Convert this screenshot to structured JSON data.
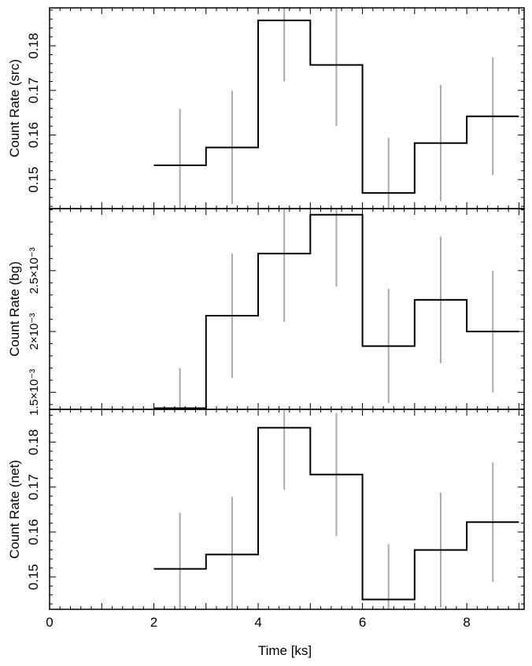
{
  "chart_data": [
    {
      "type": "line",
      "panel": "src",
      "ylabel": "Count Rate (src)",
      "xlim": [
        0,
        9.1
      ],
      "ylim": [
        0.1435,
        0.1885
      ],
      "yticks": [
        0.15,
        0.16,
        0.17,
        0.18
      ],
      "ytick_labels": [
        "0.15",
        "0.16",
        "0.17",
        "0.18"
      ],
      "bins": [
        [
          2,
          3
        ],
        [
          3,
          4
        ],
        [
          4,
          5
        ],
        [
          5,
          6
        ],
        [
          6,
          7
        ],
        [
          7,
          8
        ],
        [
          8,
          9
        ]
      ],
      "x": [
        2.5,
        3.5,
        4.5,
        5.5,
        6.5,
        7.5,
        8.5
      ],
      "values": [
        0.1532,
        0.1572,
        0.1857,
        0.1757,
        0.147,
        0.1582,
        0.1642
      ],
      "errors": [
        0.0127,
        0.0127,
        0.0137,
        0.0137,
        0.0124,
        0.013,
        0.0132
      ]
    },
    {
      "type": "line",
      "panel": "bg",
      "ylabel": "Count Rate (bg)",
      "xlim": [
        0,
        9.1
      ],
      "ylim": [
        0.00136,
        0.00301
      ],
      "yticks": [
        0.0015,
        0.002,
        0.0025
      ],
      "ytick_labels": [
        "1.5×10⁻³",
        "2×10⁻³",
        "2.5×10⁻³"
      ],
      "bins": [
        [
          2,
          3
        ],
        [
          3,
          4
        ],
        [
          4,
          5
        ],
        [
          5,
          6
        ],
        [
          6,
          7
        ],
        [
          7,
          8
        ],
        [
          8,
          9
        ]
      ],
      "x": [
        2.5,
        3.5,
        4.5,
        5.5,
        6.5,
        7.5,
        8.5
      ],
      "values": [
        0.00137,
        0.00213,
        0.00264,
        0.00296,
        0.00188,
        0.00226,
        0.002
      ],
      "errors": [
        0.00033,
        0.00051,
        0.00056,
        0.00059,
        0.00047,
        0.00052,
        0.0005
      ]
    },
    {
      "type": "line",
      "panel": "net",
      "ylabel": "Count Rate (net)",
      "xlim": [
        0,
        9.1
      ],
      "ylim": [
        0.1428,
        0.1873
      ],
      "yticks": [
        0.15,
        0.16,
        0.17,
        0.18
      ],
      "ytick_labels": [
        "0.15",
        "0.16",
        "0.17",
        "0.18"
      ],
      "xlabel": "Time [ks]",
      "xticks": [
        0,
        2,
        4,
        6,
        8
      ],
      "xtick_labels": [
        "0",
        "2",
        "4",
        "6",
        "8"
      ],
      "bins": [
        [
          2,
          3
        ],
        [
          3,
          4
        ],
        [
          4,
          5
        ],
        [
          5,
          6
        ],
        [
          6,
          7
        ],
        [
          7,
          8
        ],
        [
          8,
          9
        ]
      ],
      "x": [
        2.5,
        3.5,
        4.5,
        5.5,
        6.5,
        7.5,
        8.5
      ],
      "values": [
        0.1518,
        0.155,
        0.1832,
        0.1728,
        0.145,
        0.156,
        0.1622
      ],
      "errors": [
        0.0125,
        0.0128,
        0.0138,
        0.0137,
        0.0123,
        0.0128,
        0.0133
      ]
    }
  ],
  "colors": {
    "step": "#000000",
    "errorbar": "#aaaaaa",
    "frame": "#000000"
  }
}
